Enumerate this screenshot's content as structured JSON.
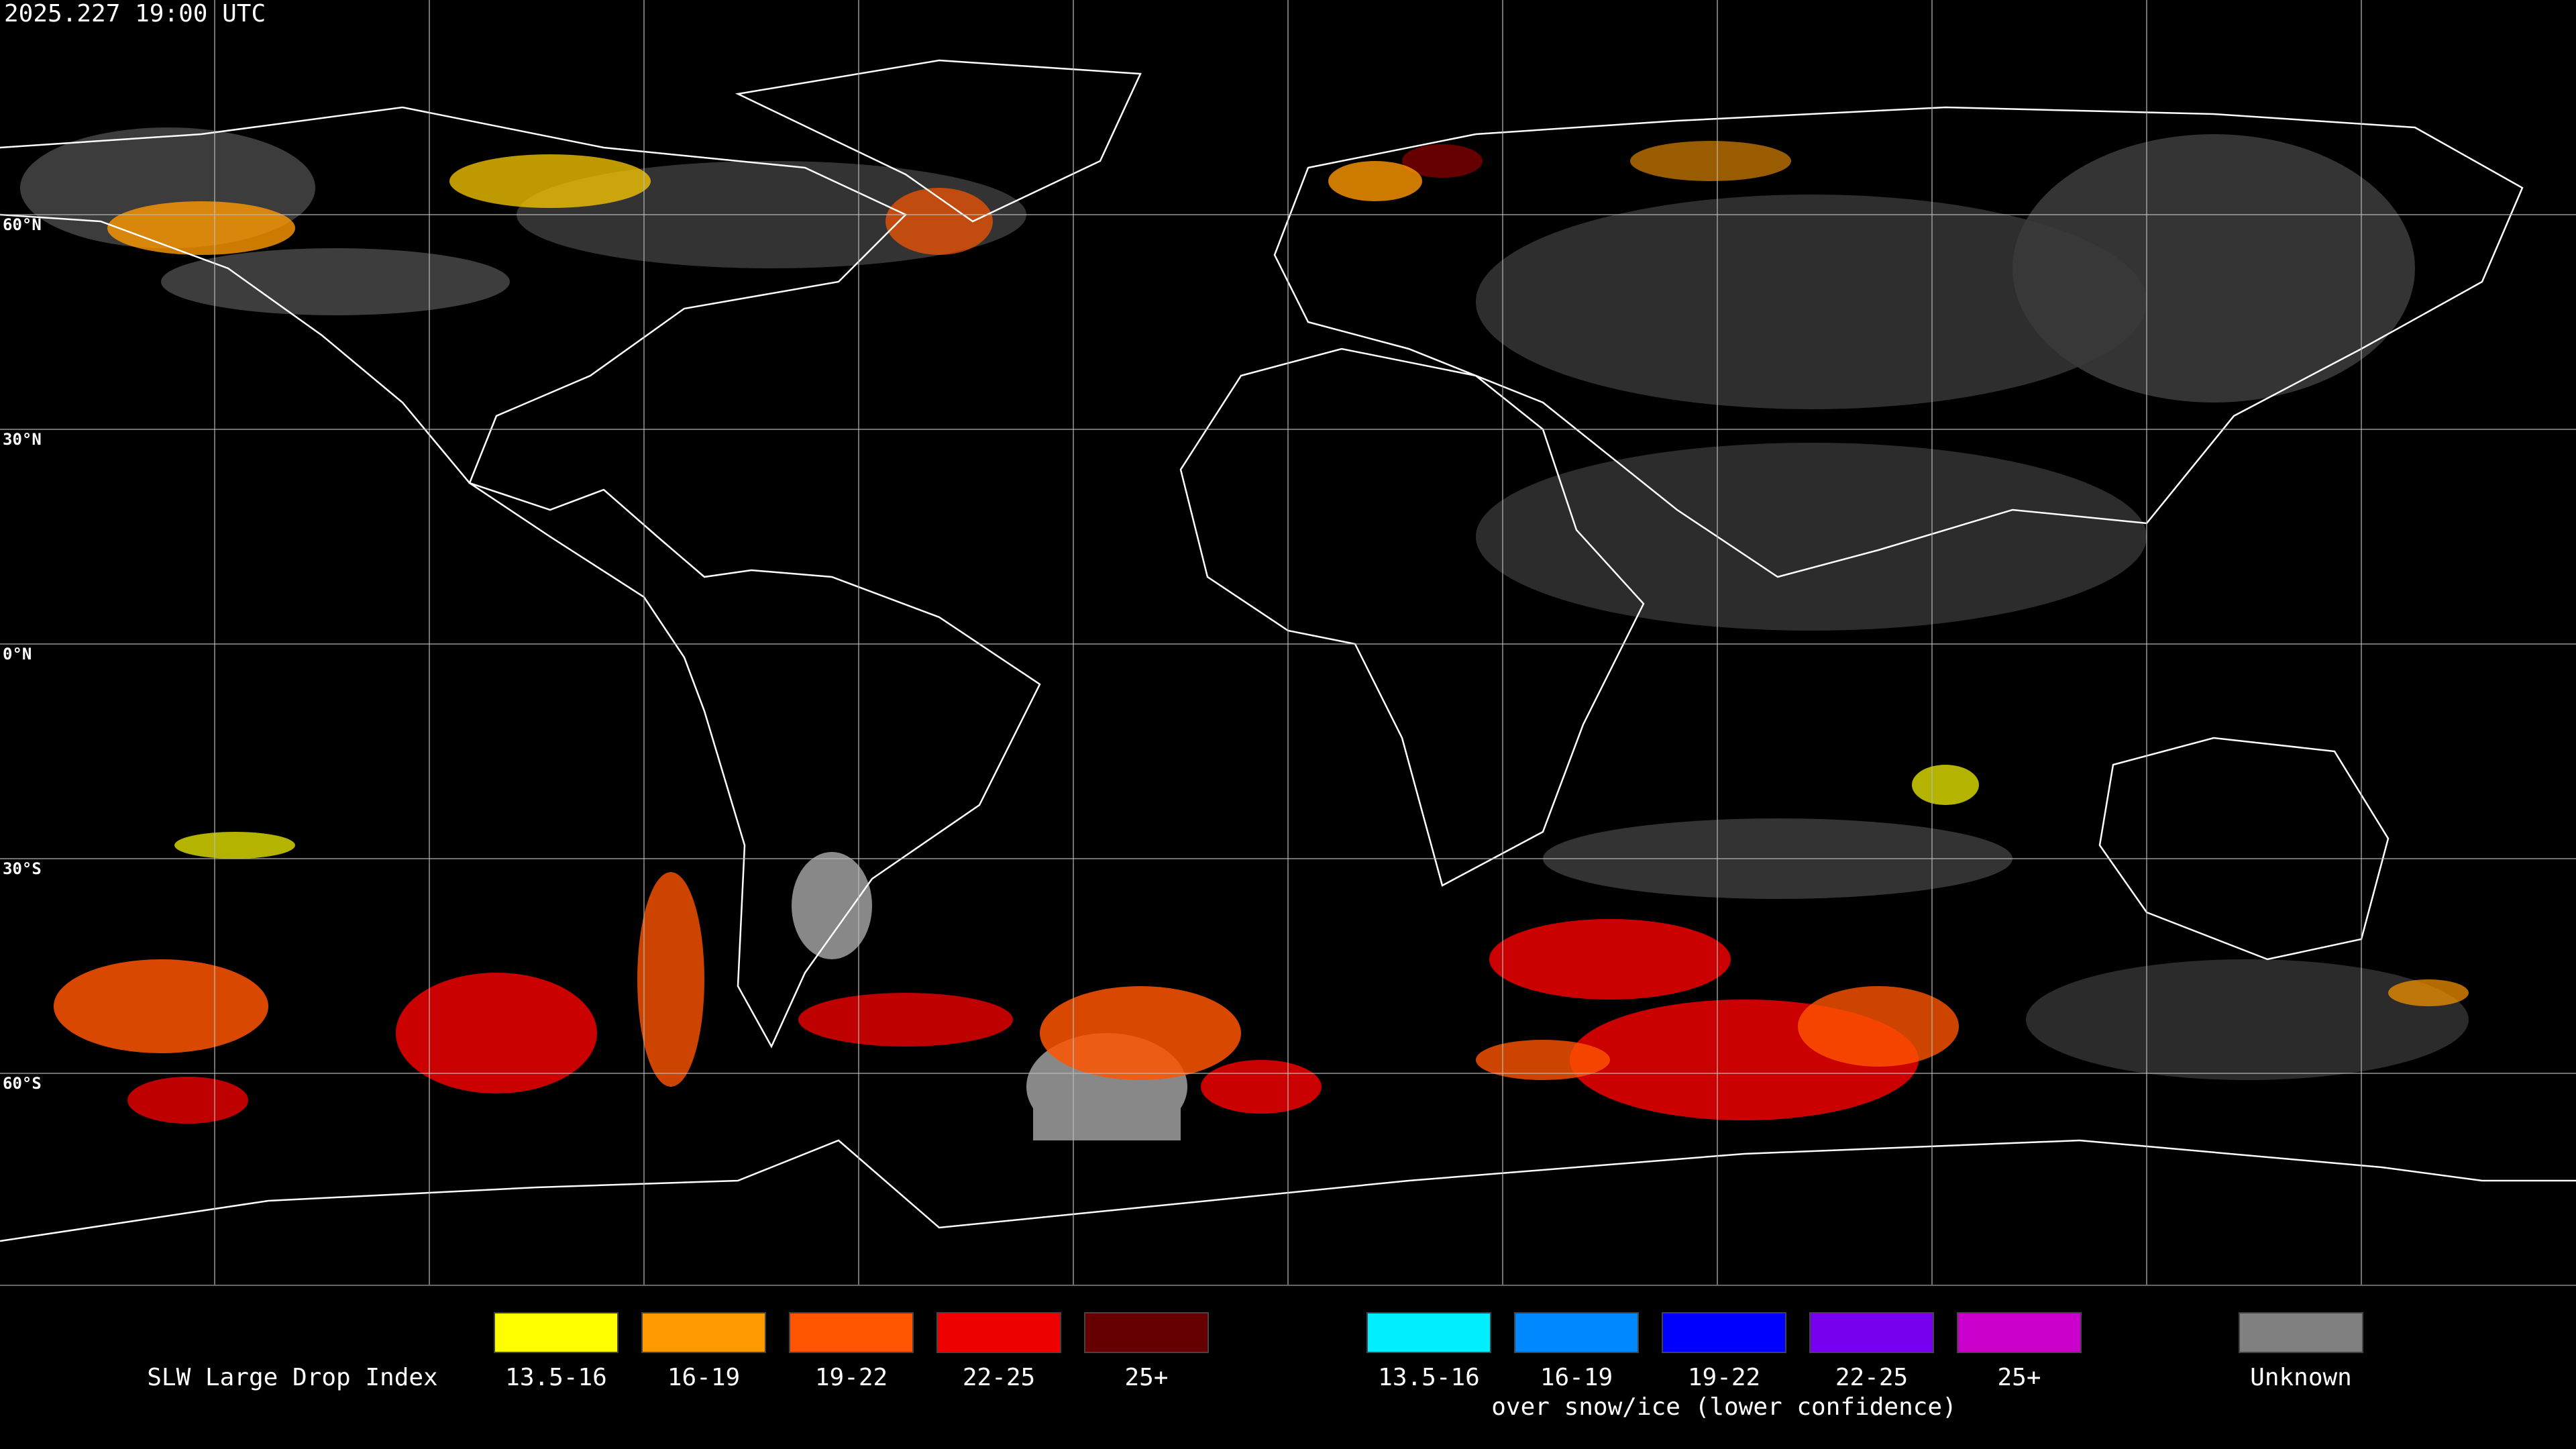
{
  "timestamp": "2025.227 19:00 UTC",
  "latitude_labels": [
    "60°N",
    "30°N",
    "0°N",
    "30°S",
    "60°S"
  ],
  "legend": {
    "title": "SLW Large Drop Index",
    "groups": [
      {
        "items": [
          {
            "label": "13.5-16",
            "color": "#ffff00"
          },
          {
            "label": "16-19",
            "color": "#ff9900"
          },
          {
            "label": "19-22",
            "color": "#ff5500"
          },
          {
            "label": "22-25",
            "color": "#ee0000"
          },
          {
            "label": "25+",
            "color": "#660000"
          }
        ]
      },
      {
        "items": [
          {
            "label": "13.5-16",
            "color": "#00eeff"
          },
          {
            "label": "16-19",
            "color": "#0088ff"
          },
          {
            "label": "19-22",
            "color": "#0000ff"
          },
          {
            "label": "22-25",
            "color": "#7700ee"
          },
          {
            "label": "25+",
            "color": "#cc00cc"
          }
        ],
        "caption": "over snow/ice (lower confidence)"
      },
      {
        "items": [
          {
            "label": "Unknown",
            "color": "#808080"
          }
        ]
      }
    ]
  }
}
